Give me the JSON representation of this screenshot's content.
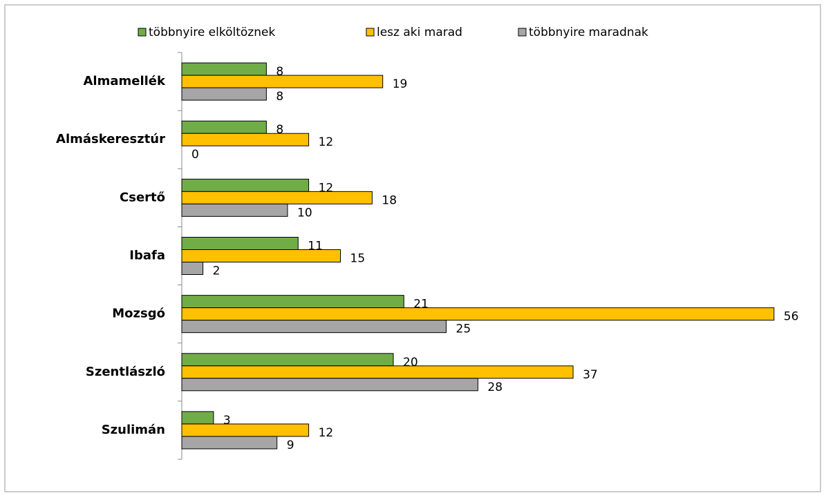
{
  "chart_data": {
    "type": "bar",
    "orientation": "horizontal",
    "categories": [
      "Almamellék",
      "Almáskeresztúr",
      "Csertő",
      "Ibafa",
      "Mozsgó",
      "Szentlászló",
      "Szulimán"
    ],
    "series": [
      {
        "name": "többnyire elköltöznek",
        "color": "#70ad47",
        "values": [
          8,
          8,
          12,
          11,
          21,
          20,
          3
        ]
      },
      {
        "name": "lesz aki marad",
        "color": "#ffc000",
        "values": [
          19,
          12,
          18,
          15,
          56,
          37,
          12
        ]
      },
      {
        "name": "többnyire maradnak",
        "color": "#a6a6a6",
        "values": [
          8,
          0,
          10,
          2,
          25,
          28,
          9
        ]
      }
    ],
    "xlim": [
      0,
      60
    ],
    "legend": "top"
  }
}
